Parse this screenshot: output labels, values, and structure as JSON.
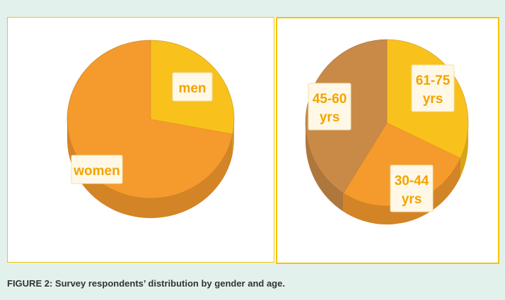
{
  "caption": "FIGURE 2: Survey respondents’ distribution by gender and age.",
  "colors": {
    "background": "#e3f1ec",
    "panel_border": "#f4c400",
    "men": "#f8c11c",
    "women": "#f59a2c",
    "age_61_75": "#f8c11c",
    "age_30_44": "#f59a2c",
    "age_45_60": "#c98a48"
  },
  "chart_data": [
    {
      "type": "pie",
      "title": "",
      "slices": [
        {
          "label": "men",
          "value": 28,
          "color": "#f8c11c"
        },
        {
          "label": "women",
          "value": 72,
          "color": "#f59a2c"
        }
      ]
    },
    {
      "type": "pie",
      "title": "",
      "slices": [
        {
          "label": "61-75 yrs",
          "lines": [
            "61-75",
            "yrs"
          ],
          "value": 32,
          "color": "#f8c11c"
        },
        {
          "label": "30-44 yrs",
          "lines": [
            "30-44",
            "yrs"
          ],
          "value": 27,
          "color": "#f59a2c"
        },
        {
          "label": "45-60 yrs",
          "lines": [
            "45-60",
            "yrs"
          ],
          "value": 41,
          "color": "#c98a48"
        }
      ]
    }
  ]
}
